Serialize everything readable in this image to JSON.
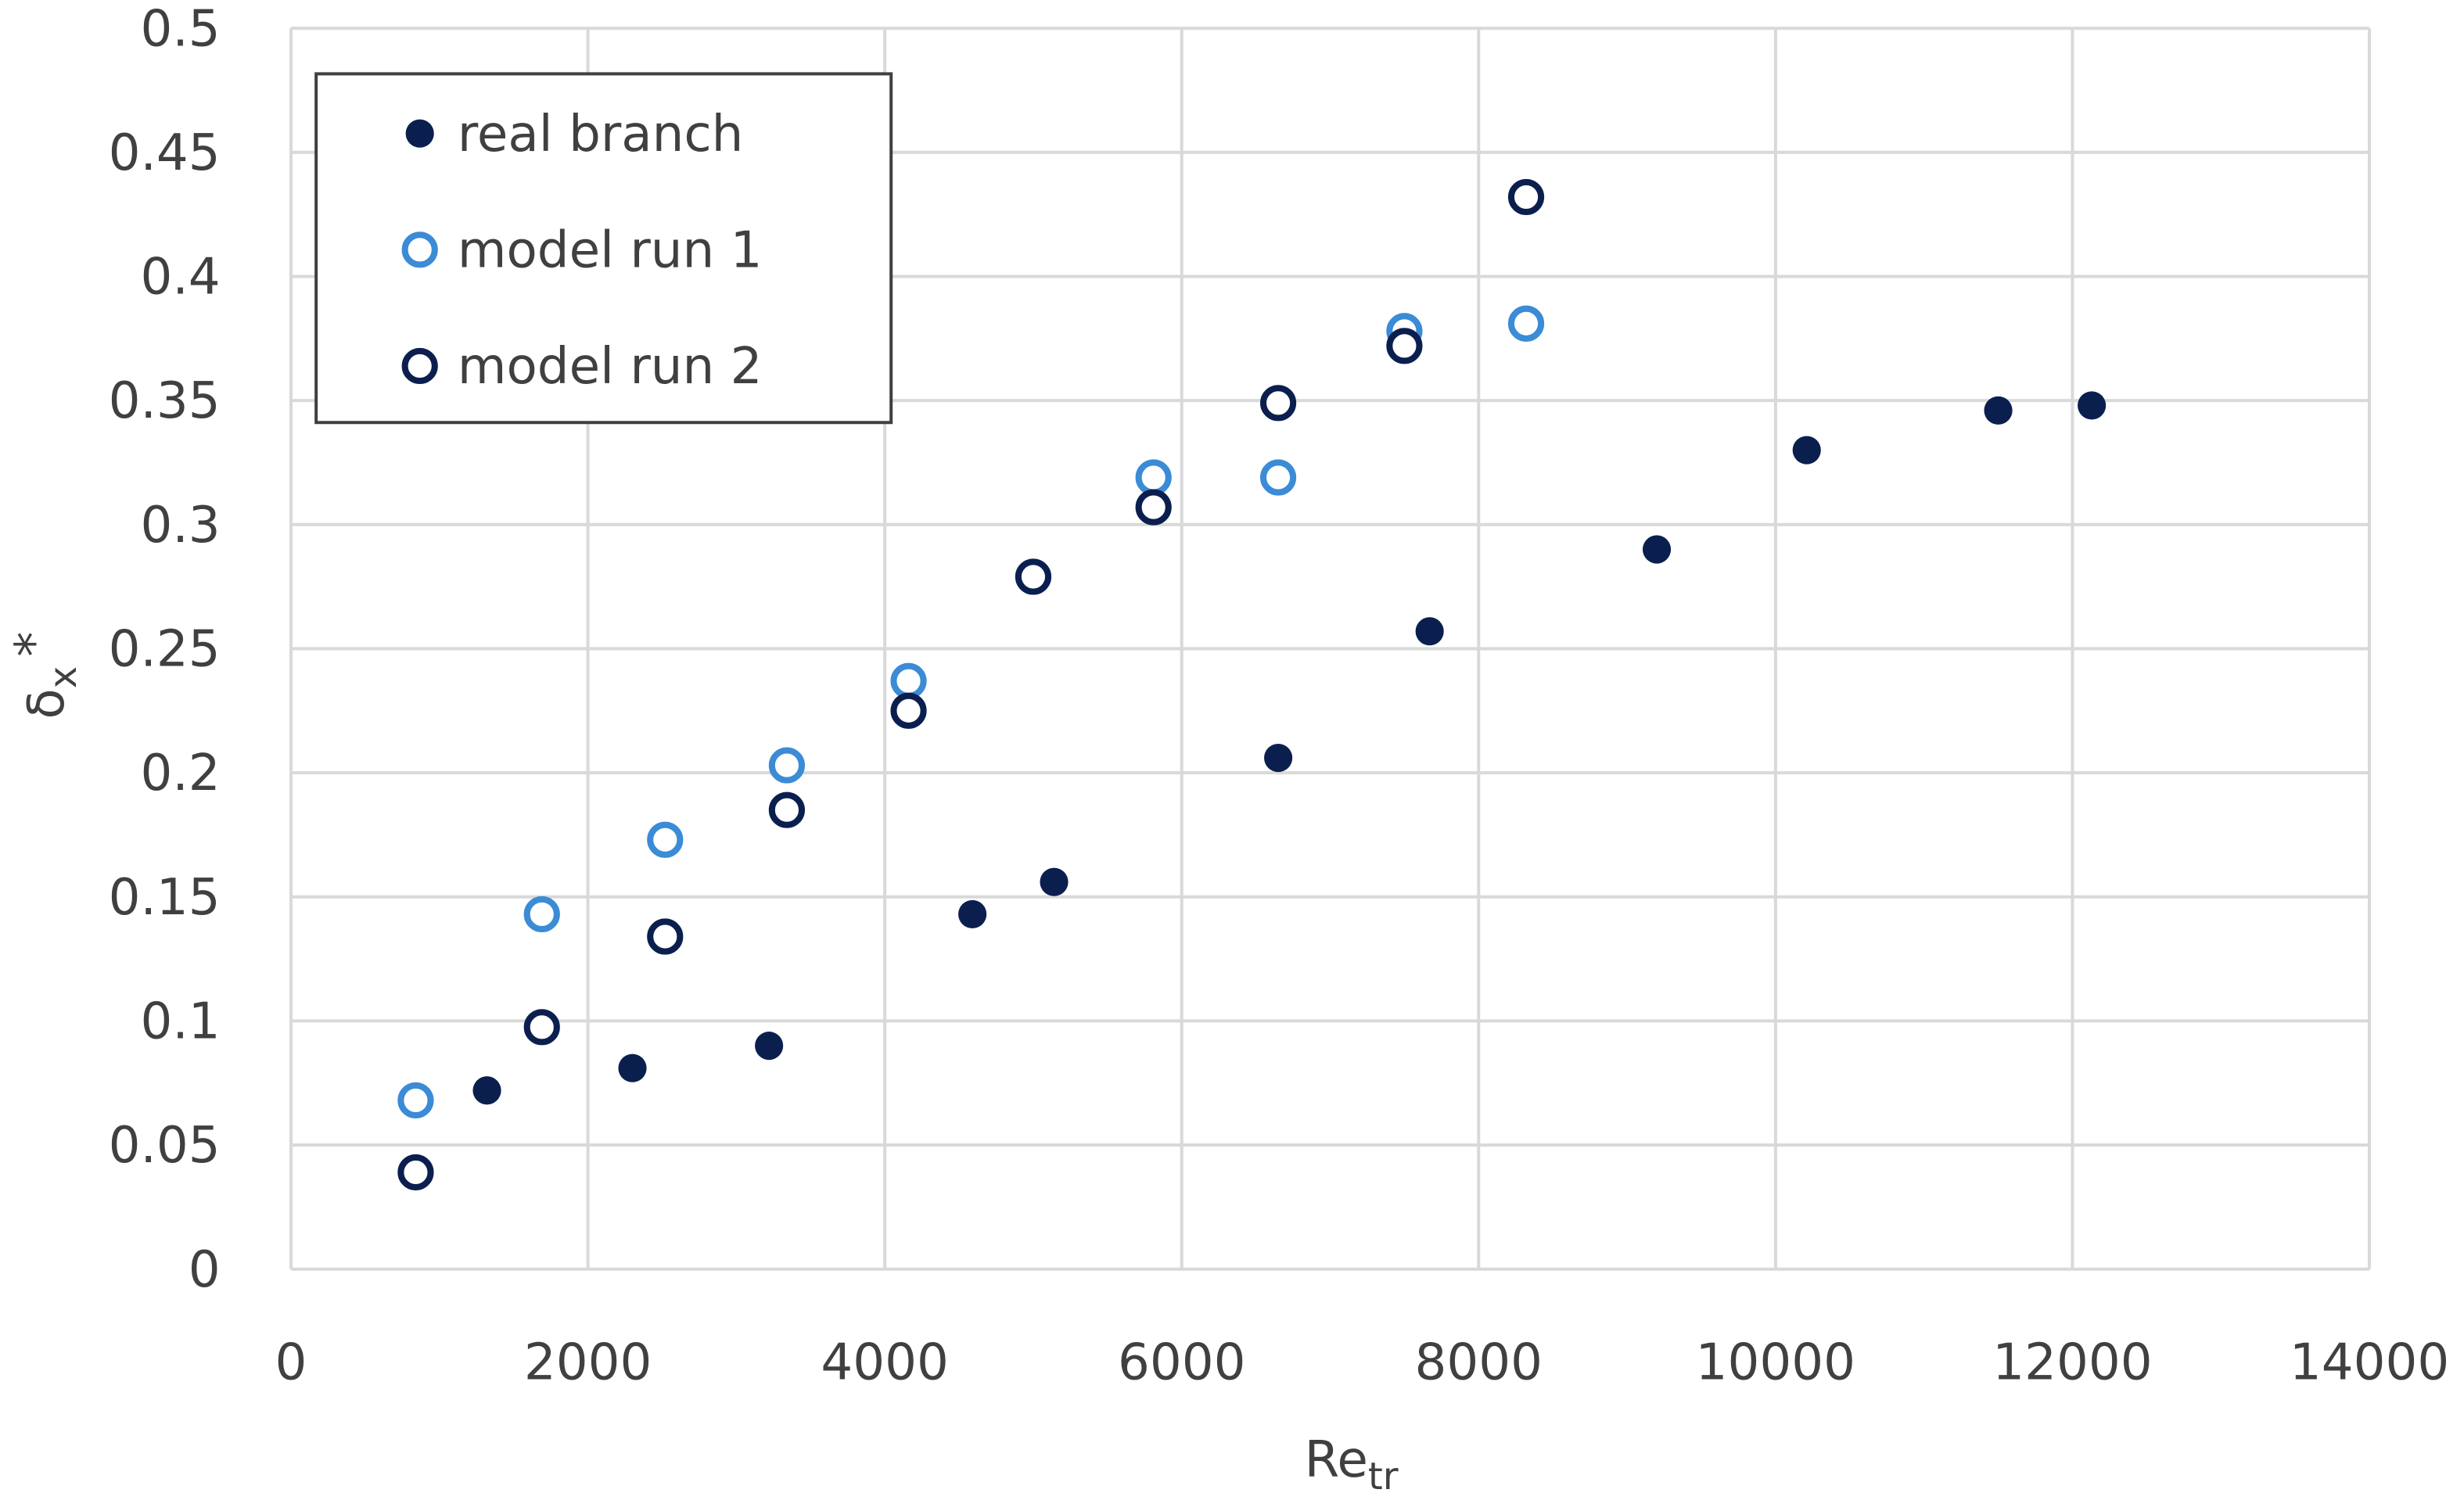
{
  "chart_data": {
    "type": "scatter",
    "xlabel": "Re",
    "xlabel_sub": "tr",
    "ylabel": "δ",
    "ylabel_sub": "x",
    "ylabel_sup": "*",
    "xlim": [
      0,
      14000
    ],
    "xticks": [
      0,
      2000,
      4000,
      6000,
      8000,
      10000,
      12000,
      14000
    ],
    "ylim": [
      0,
      0.5
    ],
    "yticks": [
      0,
      0.05,
      0.1,
      0.15,
      0.2,
      0.25,
      0.3,
      0.35,
      0.4,
      0.45,
      0.5
    ],
    "grid": true,
    "legend": "upper-left",
    "series": [
      {
        "name": "real branch",
        "color": "#0b1f4f",
        "marker": "filled",
        "x": [
          1320,
          2300,
          3220,
          4590,
          5140,
          6650,
          7670,
          9200,
          10210,
          11500,
          12130
        ],
        "values": [
          0.072,
          0.081,
          0.09,
          0.143,
          0.156,
          0.206,
          0.257,
          0.29,
          0.33,
          0.346,
          0.348
        ]
      },
      {
        "name": "model run 1",
        "color": "#3b8bd6",
        "marker": "open",
        "x": [
          840,
          1690,
          2520,
          3340,
          4160,
          5000,
          5810,
          6650,
          7500,
          8320
        ],
        "values": [
          0.068,
          0.143,
          0.173,
          0.203,
          0.237,
          0.279,
          0.319,
          0.319,
          0.378,
          0.381
        ]
      },
      {
        "name": "model run 2",
        "color": "#0b1f4f",
        "marker": "open",
        "x": [
          840,
          1690,
          2520,
          3340,
          4160,
          5000,
          5810,
          6650,
          7500,
          8320
        ],
        "values": [
          0.039,
          0.0975,
          0.134,
          0.185,
          0.225,
          0.279,
          0.307,
          0.349,
          0.372,
          0.432
        ]
      }
    ]
  }
}
